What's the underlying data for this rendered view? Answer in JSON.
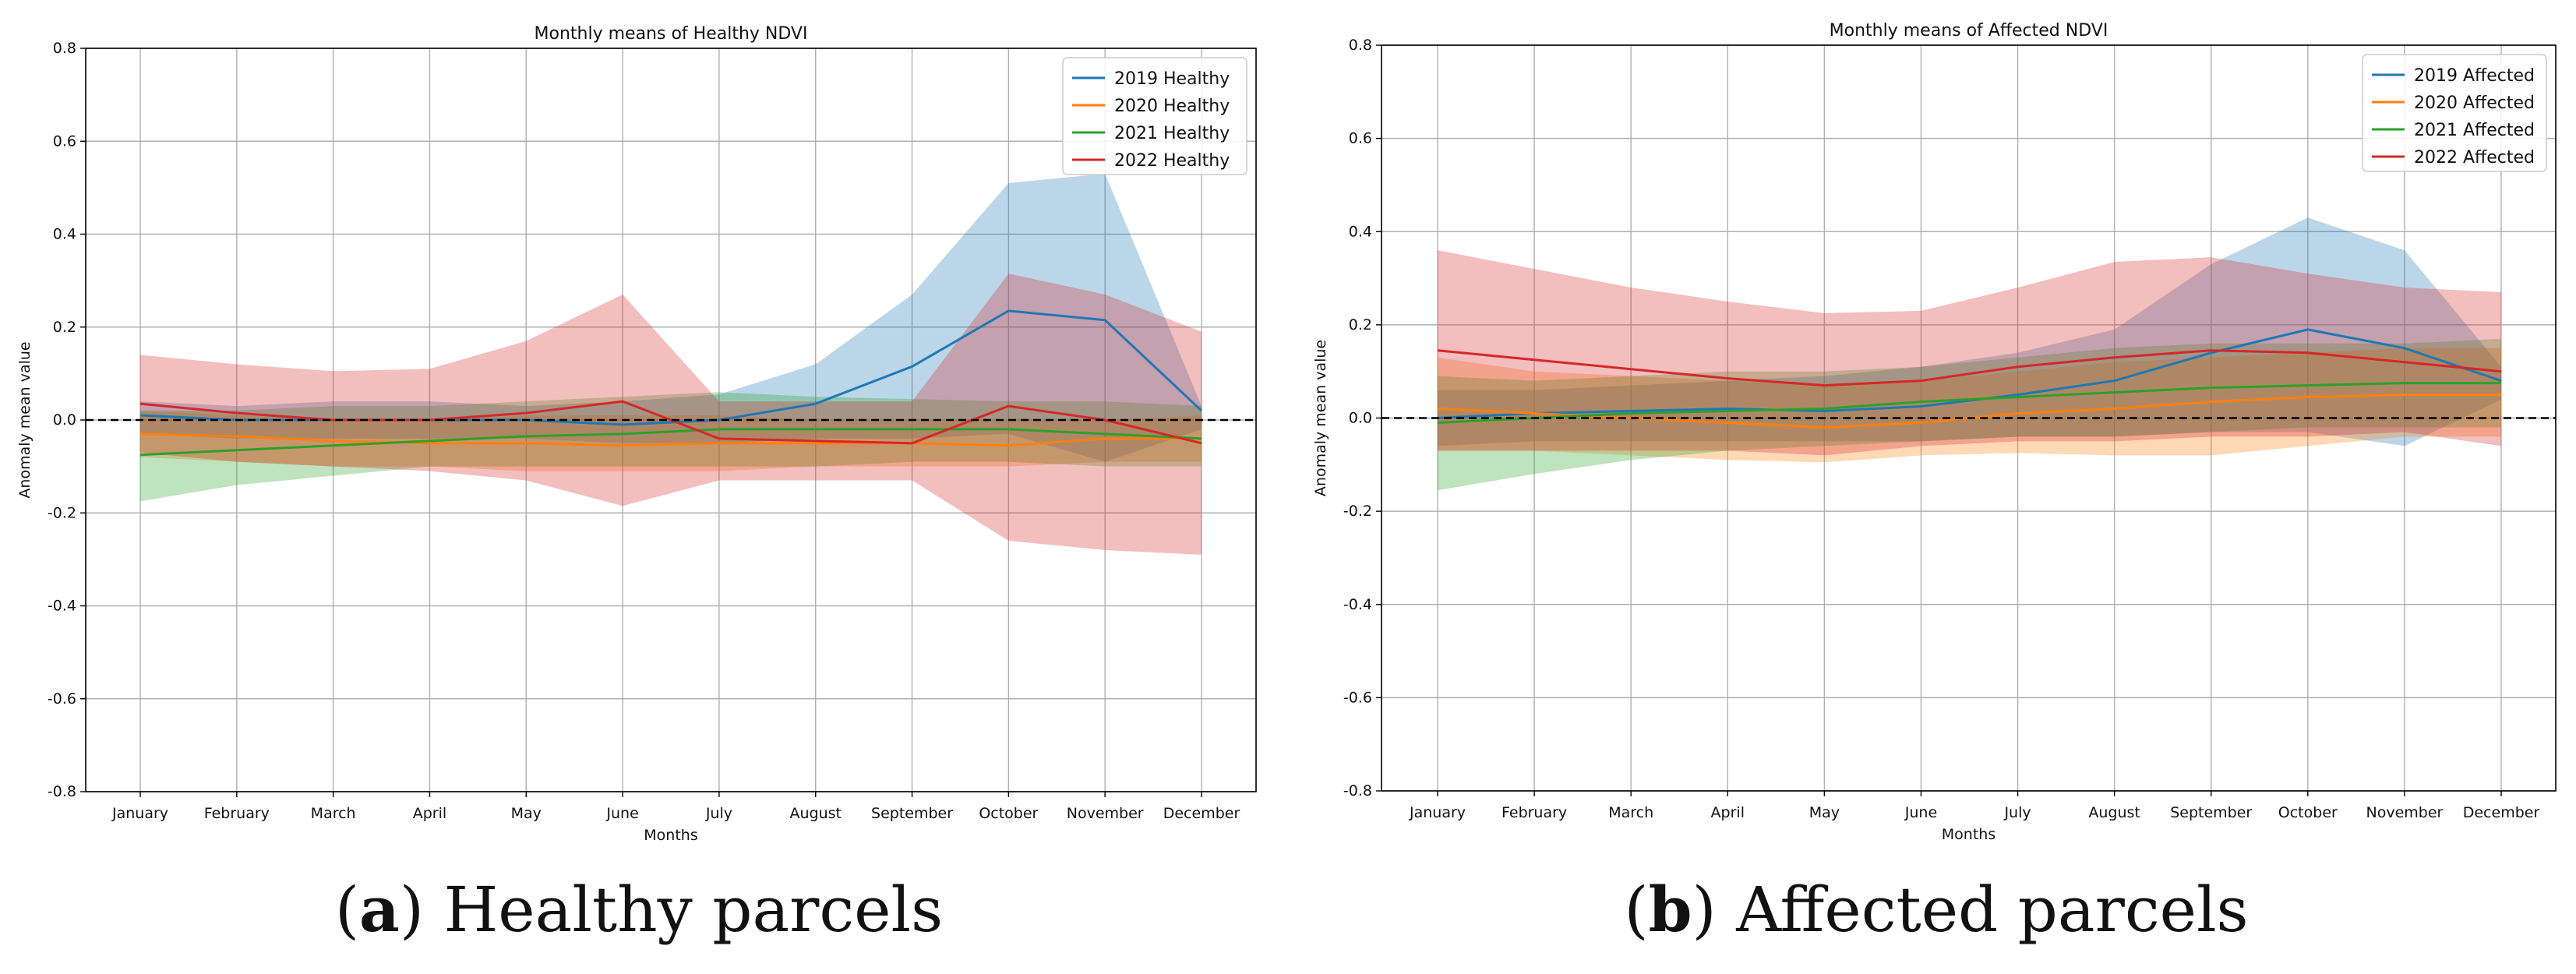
{
  "months": [
    "January",
    "February",
    "March",
    "April",
    "May",
    "June",
    "July",
    "August",
    "September",
    "October",
    "November",
    "December"
  ],
  "colors": {
    "2019": "#1f77b4",
    "2020": "#ff7f0e",
    "2021": "#2ca02c",
    "2022": "#d62728"
  },
  "chart_data": [
    {
      "type": "line",
      "title": "Monthly means of Healthy NDVI",
      "xlabel": "Months",
      "ylabel": "Anomaly mean value",
      "ylim": [
        -0.8,
        0.8
      ],
      "yticks": [
        "-0.8",
        "-0.6",
        "-0.4",
        "-0.2",
        "0.0",
        "0.2",
        "0.4",
        "0.6",
        "0.8"
      ],
      "grid": true,
      "reference_line": 0.0,
      "legend_position": "top-right",
      "categories": [
        "January",
        "February",
        "March",
        "April",
        "May",
        "June",
        "July",
        "August",
        "September",
        "October",
        "November",
        "December"
      ],
      "series": [
        {
          "name": "2019 Healthy",
          "color": "#1f77b4",
          "values": [
            0.01,
            0.0,
            0.0,
            0.0,
            0.0,
            -0.01,
            0.0,
            0.035,
            0.115,
            0.235,
            0.215,
            0.02
          ],
          "upper": [
            0.04,
            0.03,
            0.04,
            0.04,
            0.03,
            0.04,
            0.055,
            0.12,
            0.27,
            0.51,
            0.53,
            0.03
          ],
          "lower": [
            -0.03,
            -0.04,
            -0.04,
            -0.04,
            -0.04,
            -0.05,
            -0.05,
            -0.04,
            -0.04,
            -0.03,
            -0.09,
            -0.02
          ]
        },
        {
          "name": "2020 Healthy",
          "color": "#ff7f0e",
          "values": [
            -0.03,
            -0.035,
            -0.045,
            -0.05,
            -0.05,
            -0.055,
            -0.05,
            -0.05,
            -0.05,
            -0.055,
            -0.04,
            -0.04
          ],
          "upper": [
            0.02,
            0.01,
            0.0,
            0.0,
            0.01,
            0.01,
            0.01,
            0.0,
            0.0,
            0.0,
            0.0,
            0.01
          ],
          "lower": [
            -0.08,
            -0.09,
            -0.1,
            -0.1,
            -0.11,
            -0.11,
            -0.11,
            -0.1,
            -0.1,
            -0.1,
            -0.09,
            -0.09
          ]
        },
        {
          "name": "2021 Healthy",
          "color": "#2ca02c",
          "values": [
            -0.075,
            -0.065,
            -0.055,
            -0.045,
            -0.035,
            -0.03,
            -0.02,
            -0.02,
            -0.02,
            -0.02,
            -0.03,
            -0.04
          ],
          "upper": [
            0.02,
            0.02,
            0.03,
            0.03,
            0.04,
            0.05,
            0.06,
            0.05,
            0.045,
            0.04,
            0.04,
            0.03
          ],
          "lower": [
            -0.175,
            -0.14,
            -0.12,
            -0.1,
            -0.1,
            -0.1,
            -0.1,
            -0.1,
            -0.09,
            -0.09,
            -0.1,
            -0.1
          ]
        },
        {
          "name": "2022 Healthy",
          "color": "#d62728",
          "values": [
            0.035,
            0.015,
            0.0,
            0.0,
            0.015,
            0.04,
            -0.04,
            -0.045,
            -0.05,
            0.03,
            0.0,
            -0.05
          ],
          "upper": [
            0.14,
            0.12,
            0.105,
            0.11,
            0.17,
            0.27,
            0.04,
            0.04,
            0.04,
            0.315,
            0.27,
            0.19
          ],
          "lower": [
            -0.07,
            -0.09,
            -0.1,
            -0.11,
            -0.13,
            -0.185,
            -0.13,
            -0.13,
            -0.13,
            -0.26,
            -0.28,
            -0.29
          ]
        }
      ]
    },
    {
      "type": "line",
      "title": "Monthly means of Affected NDVI",
      "xlabel": "Months",
      "ylabel": "Anomaly mean value",
      "ylim": [
        -0.8,
        0.8
      ],
      "yticks": [
        "-0.8",
        "-0.6",
        "-0.4",
        "-0.2",
        "0.0",
        "0.2",
        "0.4",
        "0.6",
        "0.8"
      ],
      "grid": true,
      "reference_line": 0.0,
      "legend_position": "top-right",
      "categories": [
        "January",
        "February",
        "March",
        "April",
        "May",
        "June",
        "July",
        "August",
        "September",
        "October",
        "November",
        "December"
      ],
      "series": [
        {
          "name": "2019 Affected",
          "color": "#1f77b4",
          "values": [
            0.0,
            0.01,
            0.015,
            0.02,
            0.015,
            0.025,
            0.05,
            0.08,
            0.14,
            0.19,
            0.15,
            0.08
          ],
          "upper": [
            0.06,
            0.06,
            0.07,
            0.08,
            0.09,
            0.11,
            0.14,
            0.19,
            0.33,
            0.43,
            0.36,
            0.11
          ],
          "lower": [
            -0.06,
            -0.05,
            -0.05,
            -0.05,
            -0.05,
            -0.05,
            -0.04,
            -0.04,
            -0.03,
            -0.03,
            -0.06,
            0.04
          ]
        },
        {
          "name": "2020 Affected",
          "color": "#ff7f0e",
          "values": [
            0.02,
            0.01,
            0.0,
            -0.01,
            -0.02,
            -0.01,
            0.01,
            0.02,
            0.035,
            0.045,
            0.05,
            0.05
          ],
          "upper": [
            0.13,
            0.1,
            0.09,
            0.08,
            0.07,
            0.08,
            0.1,
            0.12,
            0.13,
            0.14,
            0.15,
            0.15
          ],
          "lower": [
            -0.07,
            -0.07,
            -0.08,
            -0.09,
            -0.095,
            -0.08,
            -0.075,
            -0.08,
            -0.08,
            -0.06,
            -0.04,
            -0.04
          ]
        },
        {
          "name": "2021 Affected",
          "color": "#2ca02c",
          "values": [
            -0.01,
            0.0,
            0.01,
            0.015,
            0.02,
            0.035,
            0.045,
            0.055,
            0.065,
            0.07,
            0.075,
            0.075
          ],
          "upper": [
            0.09,
            0.08,
            0.09,
            0.1,
            0.1,
            0.11,
            0.13,
            0.15,
            0.16,
            0.16,
            0.16,
            0.17
          ],
          "lower": [
            -0.155,
            -0.12,
            -0.09,
            -0.07,
            -0.06,
            -0.05,
            -0.04,
            -0.04,
            -0.03,
            -0.02,
            -0.02,
            -0.02
          ]
        },
        {
          "name": "2022 Affected",
          "color": "#d62728",
          "values": [
            0.145,
            0.125,
            0.105,
            0.085,
            0.07,
            0.08,
            0.11,
            0.13,
            0.145,
            0.14,
            0.12,
            0.1
          ],
          "upper": [
            0.36,
            0.32,
            0.28,
            0.25,
            0.225,
            0.23,
            0.28,
            0.335,
            0.345,
            0.31,
            0.28,
            0.27
          ],
          "lower": [
            -0.07,
            -0.07,
            -0.07,
            -0.07,
            -0.08,
            -0.06,
            -0.05,
            -0.05,
            -0.04,
            -0.04,
            -0.03,
            -0.06
          ]
        }
      ]
    }
  ],
  "captions": [
    {
      "label": "a",
      "text": " Healthy parcels"
    },
    {
      "label": "b",
      "text": " Affected parcels"
    }
  ]
}
